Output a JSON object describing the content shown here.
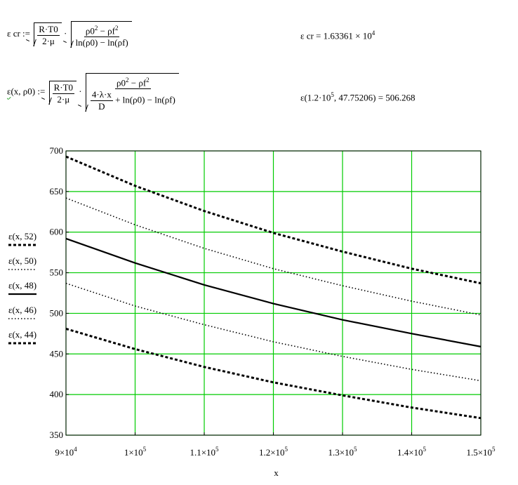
{
  "formulas": {
    "ecr_def": {
      "lhs": "ε cr :=",
      "sqrt1_num": "R·T0",
      "sqrt1_den": "2·μ",
      "dot": "·",
      "sqrt2_num_a": "ρ0",
      "sqrt2_num_b": " − ρf",
      "sup": "2",
      "sqrt2_den": "ln(ρ0) − ln(ρf)"
    },
    "ecr_result": {
      "text": "ε cr = 1.63361 × 10",
      "exp": "4"
    },
    "eps_def": {
      "lhs_a": "ε",
      "lhs_b": "(x, ρ0) :=",
      "sqrt1_num": "R·T0",
      "sqrt1_den": "2·μ",
      "dot": "·",
      "sqrt2_num_a": "ρ0",
      "sqrt2_num_b": " − ρf",
      "sup": "2",
      "inner_num": "4·λ·x",
      "inner_den": "D",
      "den_tail": "+ ln(ρ0) − ln(ρf)"
    },
    "eps_result": {
      "a": "ε",
      "b": "(1.2·10",
      "exp": "5",
      "c": ", 47.75206) = 506.268"
    }
  },
  "chart_data": {
    "type": "line",
    "xlabel": "x",
    "xlim": [
      90000,
      150000
    ],
    "ylim": [
      350,
      700
    ],
    "grid": true,
    "grid_color": "#00cc00",
    "x_ticks": [
      90000,
      100000,
      110000,
      120000,
      130000,
      140000,
      150000
    ],
    "x_tick_labels": [
      {
        "m": "9",
        "e": "4"
      },
      {
        "m": "1",
        "e": "5"
      },
      {
        "m": "1.1",
        "e": "5"
      },
      {
        "m": "1.2",
        "e": "5"
      },
      {
        "m": "1.3",
        "e": "5"
      },
      {
        "m": "1.4",
        "e": "5"
      },
      {
        "m": "1.5",
        "e": "5"
      }
    ],
    "y_ticks": [
      350,
      400,
      450,
      500,
      550,
      600,
      650,
      700
    ],
    "y_tick_labels": [
      "350",
      "400",
      "450",
      "500",
      "550",
      "600",
      "650",
      "700"
    ],
    "series": [
      {
        "name": "ε(x, 52)",
        "style": "dashed",
        "x": [
          90000,
          100000,
          110000,
          120000,
          130000,
          140000,
          150000
        ],
        "y": [
          693,
          657,
          626,
          599,
          576,
          555,
          537
        ]
      },
      {
        "name": "ε(x, 50)",
        "style": "dotted",
        "x": [
          90000,
          100000,
          110000,
          120000,
          130000,
          140000,
          150000
        ],
        "y": [
          642,
          609,
          580,
          555,
          534,
          515,
          498
        ]
      },
      {
        "name": "ε(x, 48)",
        "style": "solid",
        "x": [
          90000,
          100000,
          110000,
          120000,
          130000,
          140000,
          150000
        ],
        "y": [
          592,
          562,
          535,
          512,
          492,
          475,
          459
        ]
      },
      {
        "name": "ε(x, 46)",
        "style": "dotted",
        "x": [
          90000,
          100000,
          110000,
          120000,
          130000,
          140000,
          150000
        ],
        "y": [
          537,
          509,
          486,
          465,
          447,
          431,
          417
        ]
      },
      {
        "name": "ε(x, 44)",
        "style": "dashed",
        "x": [
          90000,
          100000,
          110000,
          120000,
          130000,
          140000,
          150000
        ],
        "y": [
          481,
          456,
          434,
          415,
          399,
          384,
          371
        ]
      }
    ]
  }
}
